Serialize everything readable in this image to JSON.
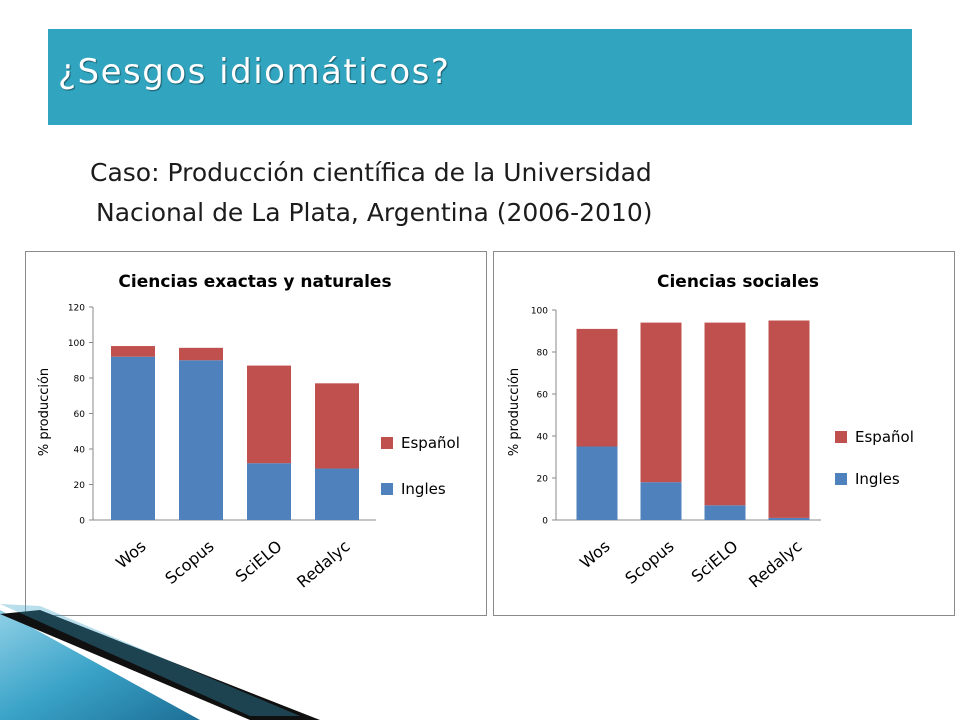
{
  "slide": {
    "title": "¿Sesgos idiomáticos?",
    "subtitle_line1": "Caso: Producción científica de la Universidad",
    "subtitle_line2": "Nacional de La Plata, Argentina (2006-2010)"
  },
  "colors": {
    "title_bar": "#31a4bf",
    "ingles": "#4f81bd",
    "espanol": "#c0504d"
  },
  "chart_data": [
    {
      "type": "bar",
      "stacked": true,
      "title": "Ciencias exactas y naturales",
      "xlabel": "",
      "ylabel": "% producción",
      "categories": [
        "Wos",
        "Scopus",
        "SciELO",
        "Redalyc"
      ],
      "ylim": [
        0,
        120
      ],
      "yticks": [
        0,
        20,
        40,
        60,
        80,
        100,
        120
      ],
      "grid": false,
      "legend": "right",
      "series": [
        {
          "name": "Ingles",
          "color": "#4f81bd",
          "values": [
            92,
            90,
            32,
            29
          ]
        },
        {
          "name": "Español",
          "color": "#c0504d",
          "values": [
            6,
            7,
            55,
            48
          ]
        }
      ]
    },
    {
      "type": "bar",
      "stacked": true,
      "title": "Ciencias sociales",
      "xlabel": "",
      "ylabel": "% producción",
      "categories": [
        "Wos",
        "Scopus",
        "SciELO",
        "Redalyc"
      ],
      "ylim": [
        0,
        100
      ],
      "yticks": [
        0,
        20,
        40,
        60,
        80,
        100
      ],
      "grid": false,
      "legend": "right",
      "series": [
        {
          "name": "Ingles",
          "color": "#4f81bd",
          "values": [
            35,
            18,
            7,
            1
          ]
        },
        {
          "name": "Español",
          "color": "#c0504d",
          "values": [
            56,
            76,
            87,
            94
          ]
        }
      ]
    }
  ]
}
